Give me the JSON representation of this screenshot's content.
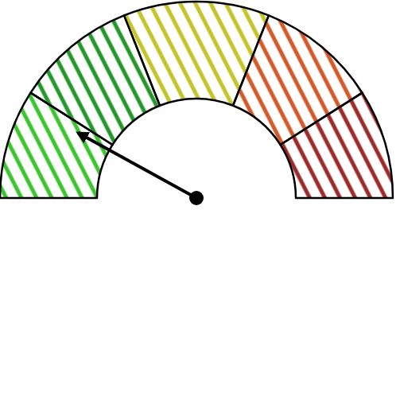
{
  "chart_data": {
    "type": "gauge",
    "ylim": [
      0,
      100
    ],
    "bands": [
      0,
      18,
      38,
      62,
      82,
      100
    ],
    "colors": [
      "#3cc42e",
      "#23972a",
      "#c3c42a",
      "#d2592a",
      "#9b2a2a"
    ],
    "value": 16
  }
}
